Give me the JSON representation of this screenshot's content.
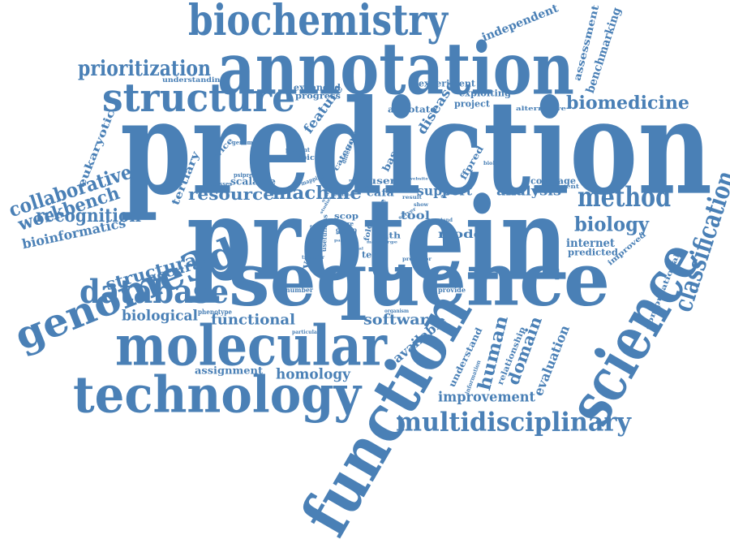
{
  "colors": {
    "word": "#4a80b6",
    "background": "#ffffff"
  },
  "words": [
    {
      "text": "prediction"
    },
    {
      "text": "protein"
    },
    {
      "text": "annotation"
    },
    {
      "text": "sequence"
    },
    {
      "text": "function"
    },
    {
      "text": "science"
    },
    {
      "text": "molecular"
    },
    {
      "text": "technology"
    },
    {
      "text": "biochemistry"
    },
    {
      "text": "structure"
    },
    {
      "text": "database"
    },
    {
      "text": "genome3d"
    },
    {
      "text": "multidisciplinary"
    },
    {
      "text": "method"
    },
    {
      "text": "classification"
    },
    {
      "text": "prioritization"
    },
    {
      "text": "collaborative"
    },
    {
      "text": "workbench"
    },
    {
      "text": "recognition"
    },
    {
      "text": "resource"
    },
    {
      "text": "machine"
    },
    {
      "text": "biomedicine"
    },
    {
      "text": "biology"
    },
    {
      "text": "human"
    },
    {
      "text": "domain"
    },
    {
      "text": "structural"
    },
    {
      "text": "bioinformatics"
    },
    {
      "text": "accuracy"
    },
    {
      "text": "biological"
    },
    {
      "text": "functional"
    },
    {
      "text": "software"
    },
    {
      "text": "homology"
    },
    {
      "text": "available"
    },
    {
      "text": "improvement"
    },
    {
      "text": "support"
    },
    {
      "text": "analysis"
    },
    {
      "text": "internet"
    },
    {
      "text": "evaluation"
    },
    {
      "text": "benchmarking"
    },
    {
      "text": "assessment"
    },
    {
      "text": "independent"
    },
    {
      "text": "feature"
    },
    {
      "text": "disease"
    },
    {
      "text": "eukaryotic"
    },
    {
      "text": "tertiary"
    },
    {
      "text": "model"
    },
    {
      "text": "tool"
    },
    {
      "text": "understand"
    },
    {
      "text": "relationship"
    },
    {
      "text": "assignment"
    },
    {
      "text": "vector"
    },
    {
      "text": "computational"
    },
    {
      "text": "expanded"
    },
    {
      "text": "progress"
    },
    {
      "text": "experiment"
    },
    {
      "text": "exploiting"
    },
    {
      "text": "project"
    },
    {
      "text": "annotate"
    },
    {
      "text": "understanding"
    },
    {
      "text": "service"
    },
    {
      "text": "scalable"
    },
    {
      "text": "based"
    },
    {
      "text": "ffpred"
    },
    {
      "text": "category"
    },
    {
      "text": "cafa"
    },
    {
      "text": "scop"
    },
    {
      "text": "term"
    },
    {
      "text": "cath"
    },
    {
      "text": "user"
    },
    {
      "text": "predicted"
    },
    {
      "text": "improved"
    },
    {
      "text": "coverage"
    },
    {
      "text": "component"
    },
    {
      "text": "alternative"
    },
    {
      "text": "genome"
    },
    {
      "text": "present"
    },
    {
      "text": "topic"
    },
    {
      "text": "psipred"
    },
    {
      "text": "processes"
    },
    {
      "text": "mapping"
    },
    {
      "text": "different"
    },
    {
      "text": "biologist"
    },
    {
      "text": "life"
    },
    {
      "text": "fold"
    },
    {
      "text": "group"
    },
    {
      "text": "more"
    },
    {
      "text": "usefulness"
    },
    {
      "text": "phenotype"
    },
    {
      "text": "particular"
    },
    {
      "text": "number"
    },
    {
      "text": "transfer"
    },
    {
      "text": "predictor"
    },
    {
      "text": "provide"
    },
    {
      "text": "organism"
    },
    {
      "text": "information"
    },
    {
      "text": "extend"
    },
    {
      "text": "result"
    },
    {
      "text": "accurate"
    },
    {
      "text": "website"
    },
    {
      "text": "show"
    },
    {
      "text": "server"
    },
    {
      "text": "enable"
    },
    {
      "text": "metric"
    },
    {
      "text": "critical"
    },
    {
      "text": "pattern"
    },
    {
      "text": "several"
    },
    {
      "text": "scale"
    },
    {
      "text": "help"
    },
    {
      "text": "large"
    },
    {
      "text": "major"
    },
    {
      "text": "studies"
    },
    {
      "text": "set"
    }
  ]
}
